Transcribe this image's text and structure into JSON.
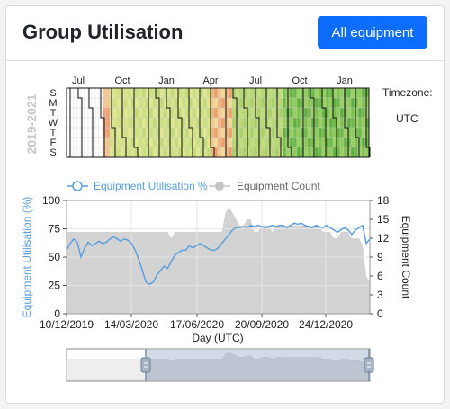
{
  "header": {
    "title": "Group Utilisation",
    "button_label": "All equipment"
  },
  "heatmap": {
    "year_label": "2019-2021",
    "months": [
      "Jul",
      "Oct",
      "Jan",
      "Apr",
      "Jul",
      "Oct",
      "Jan"
    ],
    "days": [
      "S",
      "M",
      "T",
      "W",
      "T",
      "F",
      "S"
    ],
    "timezone_label": "Timezone:",
    "timezone_value": "UTC"
  },
  "legend": {
    "series1": "Equipment Utilisation %",
    "series2": "Equipment Count"
  },
  "colors": {
    "line": "#5aa0de",
    "area": "#d3d3d3",
    "button": "#0d6efd"
  },
  "chart_data": {
    "type": "line",
    "title": "",
    "xlabel": "Day (UTC)",
    "ylabel": "Equipment Utilisation (%)",
    "y2label": "Equipment Count",
    "x_ticks": [
      "10/12/2019",
      "14/03/2020",
      "17/06/2020",
      "20/09/2020",
      "24/12/2020"
    ],
    "y_ticks": [
      "0",
      "25",
      "50",
      "75",
      "100"
    ],
    "y2_ticks": [
      "0",
      "3",
      "6",
      "9",
      "12",
      "15",
      "18"
    ],
    "ylim": [
      0,
      100
    ],
    "y2lim": [
      0,
      18
    ],
    "grid": true,
    "legend_position": "top",
    "series": [
      {
        "name": "Equipment Utilisation %",
        "values": [
          56,
          62,
          66,
          63,
          50,
          58,
          63,
          60,
          62,
          64,
          62,
          63,
          66,
          68,
          66,
          64,
          66,
          65,
          62,
          56,
          48,
          38,
          28,
          26,
          28,
          34,
          38,
          42,
          40,
          46,
          52,
          54,
          56,
          56,
          60,
          58,
          60,
          62,
          60,
          58,
          56,
          56,
          58,
          62,
          66,
          70,
          74,
          76,
          76,
          77,
          76,
          78,
          77,
          78,
          77,
          76,
          77,
          78,
          77,
          78,
          78,
          76,
          78,
          80,
          79,
          80,
          78,
          77,
          76,
          78,
          77,
          76,
          78,
          76,
          74,
          72,
          74,
          76,
          74,
          70,
          74,
          76,
          78,
          62,
          66
        ]
      },
      {
        "name": "Equipment Count",
        "values": [
          13,
          13,
          13,
          13,
          13,
          13,
          13,
          13,
          13,
          13,
          13,
          13,
          13,
          13,
          13,
          13,
          13,
          13,
          13,
          13,
          13,
          13,
          13,
          13,
          13,
          13,
          13,
          13,
          13,
          12,
          13,
          13,
          13,
          13,
          13,
          13,
          13,
          13,
          13,
          13,
          13,
          13,
          13,
          13,
          16,
          17,
          16,
          15,
          14,
          14,
          15,
          15,
          13,
          13,
          14,
          14,
          14,
          13,
          14,
          14,
          14,
          14,
          14,
          14,
          14,
          14,
          14,
          14,
          14,
          14,
          14,
          13,
          13,
          13,
          12,
          12,
          13,
          13,
          13,
          12,
          12,
          12,
          11,
          6,
          5
        ]
      }
    ]
  }
}
